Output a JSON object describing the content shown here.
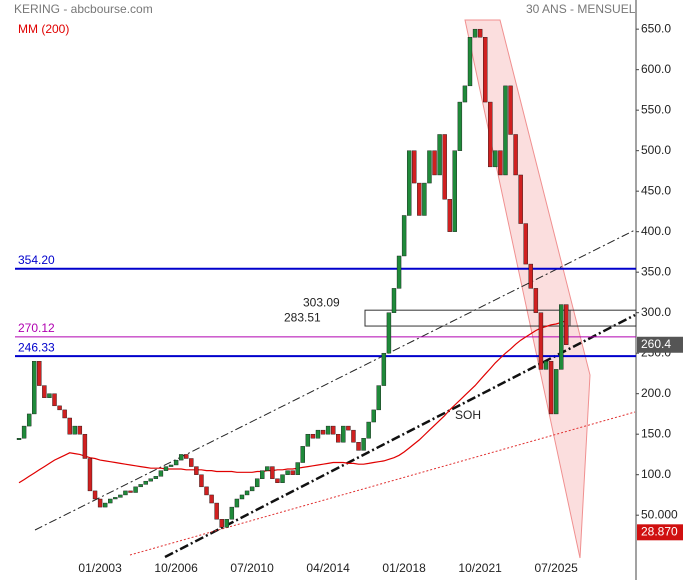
{
  "chart_data": {
    "type": "candlestick",
    "title": "KERING - abcbourse.com",
    "subtitle": "30 ANS - MENSUEL",
    "categories": [
      null,
      null,
      null,
      null,
      null,
      null,
      null,
      null,
      null,
      null,
      null,
      null,
      null,
      null,
      null,
      null,
      "01/2003",
      null,
      null,
      null,
      null,
      null,
      null,
      null,
      null,
      null,
      null,
      null,
      null,
      null,
      null,
      "10/2006",
      null,
      null,
      null,
      null,
      null,
      null,
      null,
      null,
      null,
      null,
      null,
      null,
      null,
      null,
      "07/2010",
      null,
      null,
      null,
      null,
      null,
      null,
      null,
      null,
      null,
      null,
      null,
      null,
      null,
      null,
      "04/2014",
      null,
      null,
      null,
      null,
      null,
      null,
      null,
      null,
      null,
      null,
      null,
      null,
      null,
      null,
      "01/2018",
      null,
      null,
      null,
      null,
      null,
      null,
      null,
      null,
      null,
      null,
      null,
      null,
      null,
      null,
      "10/2021",
      null,
      null,
      null,
      null,
      null,
      null,
      null,
      null,
      null,
      null,
      null,
      null,
      null,
      null,
      "07/2025",
      null,
      null
    ],
    "values": [
      145,
      160,
      175,
      240,
      210,
      195,
      200,
      185,
      180,
      170,
      150,
      160,
      150,
      120,
      80,
      70,
      60,
      65,
      70,
      72,
      75,
      80,
      78,
      85,
      88,
      92,
      95,
      98,
      105,
      110,
      112,
      118,
      125,
      120,
      110,
      100,
      85,
      75,
      65,
      45,
      35,
      45,
      60,
      70,
      75,
      80,
      85,
      95,
      105,
      110,
      95,
      90,
      100,
      105,
      100,
      115,
      135,
      150,
      145,
      155,
      150,
      160,
      150,
      140,
      160,
      155,
      140,
      130,
      145,
      165,
      180,
      210,
      250,
      300,
      330,
      370,
      420,
      500,
      460,
      420,
      460,
      500,
      470,
      520,
      440,
      400,
      500,
      560,
      580,
      640,
      650,
      640,
      560,
      480,
      500,
      470,
      580,
      520,
      470,
      410,
      360,
      330,
      300,
      230,
      240,
      175,
      230,
      310,
      260.4
    ],
    "up_color": "#1f8a3a",
    "down_color": "#d02020",
    "ma": {
      "name": "MM (200)",
      "color": "#e00000",
      "values": [
        90,
        94,
        98,
        102,
        106,
        110,
        114,
        118,
        121,
        124,
        127,
        126,
        125,
        123,
        121,
        120,
        118,
        117,
        116,
        115,
        114,
        113,
        112,
        111,
        110,
        109,
        108,
        108,
        108,
        107,
        107,
        107,
        107,
        106,
        106,
        106,
        106,
        105,
        105,
        104,
        104,
        104,
        104,
        103,
        103,
        103,
        103,
        104,
        104,
        105,
        105,
        106,
        106,
        107,
        107,
        108,
        109,
        110,
        111,
        112,
        113,
        114,
        115,
        115,
        115,
        114,
        114,
        113,
        113,
        114,
        115,
        116,
        117,
        119,
        121,
        124,
        128,
        133,
        138,
        143,
        149,
        155,
        161,
        167,
        173,
        180,
        186,
        192,
        198,
        204,
        210,
        217,
        224,
        231,
        238,
        244,
        250,
        255,
        261,
        266,
        270,
        274,
        278,
        281,
        283,
        285,
        286,
        288,
        290
      ]
    },
    "levels": [
      {
        "value": 354.2,
        "label": "354.20",
        "color": "#0000cc"
      },
      {
        "value": 270.12,
        "label": "270.12",
        "color": "#b000b0"
      },
      {
        "value": 246.33,
        "label": "246.33",
        "color": "#0000cc"
      }
    ],
    "zone": {
      "top": {
        "value": 303.09,
        "label": "303.09"
      },
      "bottom": {
        "value": 283.51,
        "label": "283.51"
      }
    },
    "annotation": "SOH",
    "last_price": {
      "value": 260.4,
      "label": "260.4"
    },
    "low_marker": {
      "value": 28.87,
      "label": "28.870"
    },
    "ylim": [
      -30,
      686
    ],
    "yticks": [
      {
        "value": 50,
        "label": "50.000"
      },
      {
        "value": 100,
        "label": "100.0"
      },
      {
        "value": 150,
        "label": "150.0"
      },
      {
        "value": 200,
        "label": "200.0"
      },
      {
        "value": 250,
        "label": "250.0"
      },
      {
        "value": 300,
        "label": "300.0"
      },
      {
        "value": 350,
        "label": "350.0"
      },
      {
        "value": 400,
        "label": "400.0"
      },
      {
        "value": 450,
        "label": "450.0"
      },
      {
        "value": 500,
        "label": "500.0"
      },
      {
        "value": 550,
        "label": "550.0"
      },
      {
        "value": 600,
        "label": "600.0"
      },
      {
        "value": 650,
        "label": "650.0"
      }
    ]
  }
}
